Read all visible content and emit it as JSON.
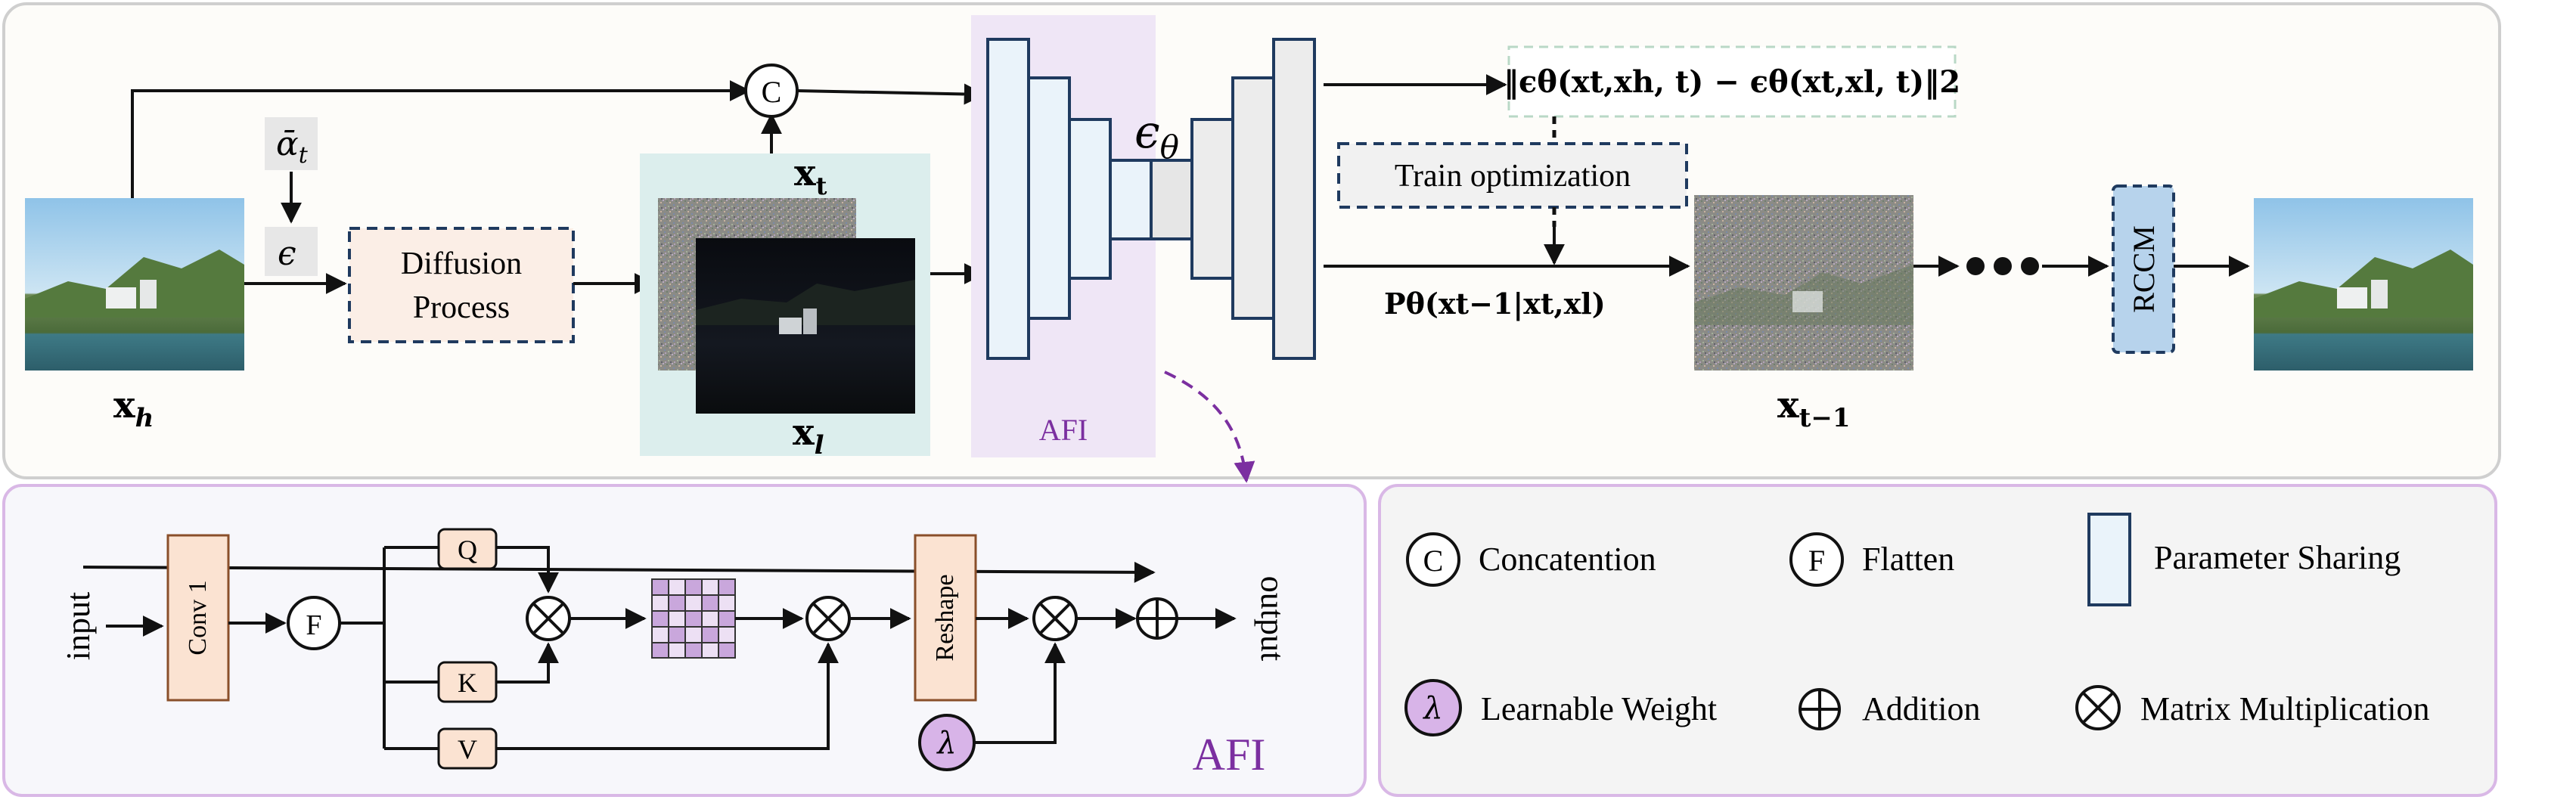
{
  "top_panel": {
    "x_h_label": "x",
    "x_h_sub": "h",
    "alpha_label": "ᾱ",
    "alpha_sub": "t",
    "epsilon_label": "ϵ",
    "diffusion_line1": "Diffusion",
    "diffusion_line2": "Process",
    "x_t_label": "x",
    "x_t_sub": "t",
    "x_l_label": "x",
    "x_l_sub": "l",
    "concat_symbol": "C",
    "eps_theta_label": "ϵ",
    "eps_theta_sub": "θ",
    "afi_label": "AFI",
    "loss_formula": "‖ϵθ(xt,xh, t) − ϵθ(xt,xl, t)‖2",
    "train_opt_label": "Train optimization",
    "posterior_label": "Pθ(xt−1|xt,xl)",
    "x_tm1_label": "x",
    "x_tm1_sub": "t−1",
    "rccm_label": "RCCM"
  },
  "afi_panel": {
    "input_label": "input",
    "output_label": "output",
    "conv_label": "Conv 1",
    "flatten_symbol": "F",
    "q_label": "Q",
    "k_label": "K",
    "v_label": "V",
    "reshape_label": "Reshape",
    "lambda_symbol": "λ",
    "afi_title": "AFI",
    "multiply_symbol": "⊗",
    "add_symbol": "⊕"
  },
  "legend": {
    "concat_symbol": "C",
    "concat_label": "Concatention",
    "flatten_symbol": "F",
    "flatten_label": "Flatten",
    "sharing_label": "Parameter Sharing",
    "lambda_symbol": "λ",
    "lambda_label": "Learnable Weight",
    "addition_label": "Addition",
    "matmul_label": "Matrix Multiplication"
  },
  "colors": {
    "panel_border": "#d0d0d0",
    "afi_border": "#d9b8e6",
    "afi_purple": "#7b2fa0",
    "conv_fill": "#fbe3d2",
    "unet_fill": "#eaf3fa",
    "unet_stroke": "#1f3a5f",
    "dashed_navy": "#1f3a5f",
    "rccm_fill": "#b7d3ec",
    "lambda_fill": "#d8b4e8",
    "grid_fill": "#c9a7dc"
  }
}
